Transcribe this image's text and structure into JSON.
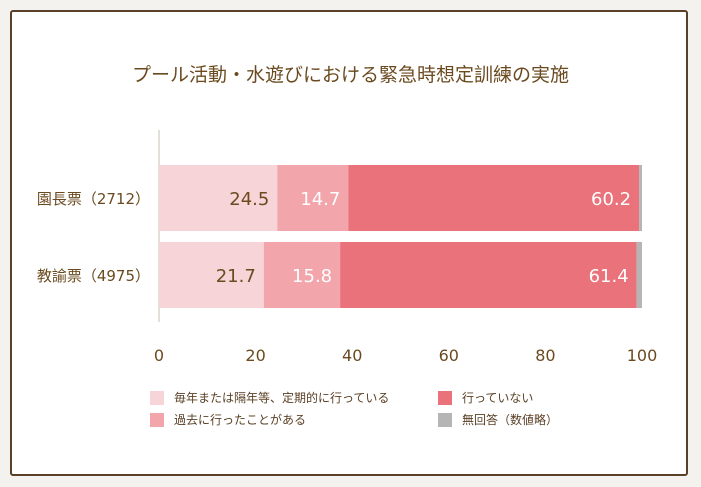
{
  "chart_data": {
    "type": "bar",
    "orientation": "horizontal-stacked",
    "title": "プール活動・水遊びにおける緊急時想定訓練の実施",
    "categories": [
      "園長票（2712）",
      "教諭票（4975）"
    ],
    "series": [
      {
        "name": "毎年または隔年等、定期的に行っている",
        "values": [
          24.5,
          21.7
        ],
        "color": "#f7d4d7",
        "label_color": "#6b4a1f"
      },
      {
        "name": "過去に行ったことがある",
        "values": [
          14.7,
          15.8
        ],
        "color": "#f2a5ab",
        "label_color": "#ffffff"
      },
      {
        "name": "行っていない",
        "values": [
          60.2,
          61.4
        ],
        "color": "#ea727b",
        "label_color": "#ffffff"
      },
      {
        "name": "無回答（数値略）",
        "values": [
          0.6,
          1.1
        ],
        "color": "#b5b5b5",
        "label_color": null
      }
    ],
    "xlim": [
      0,
      100
    ],
    "xticks": [
      "0",
      "20",
      "40",
      "60",
      "80",
      "100"
    ],
    "legend": "bottom"
  }
}
